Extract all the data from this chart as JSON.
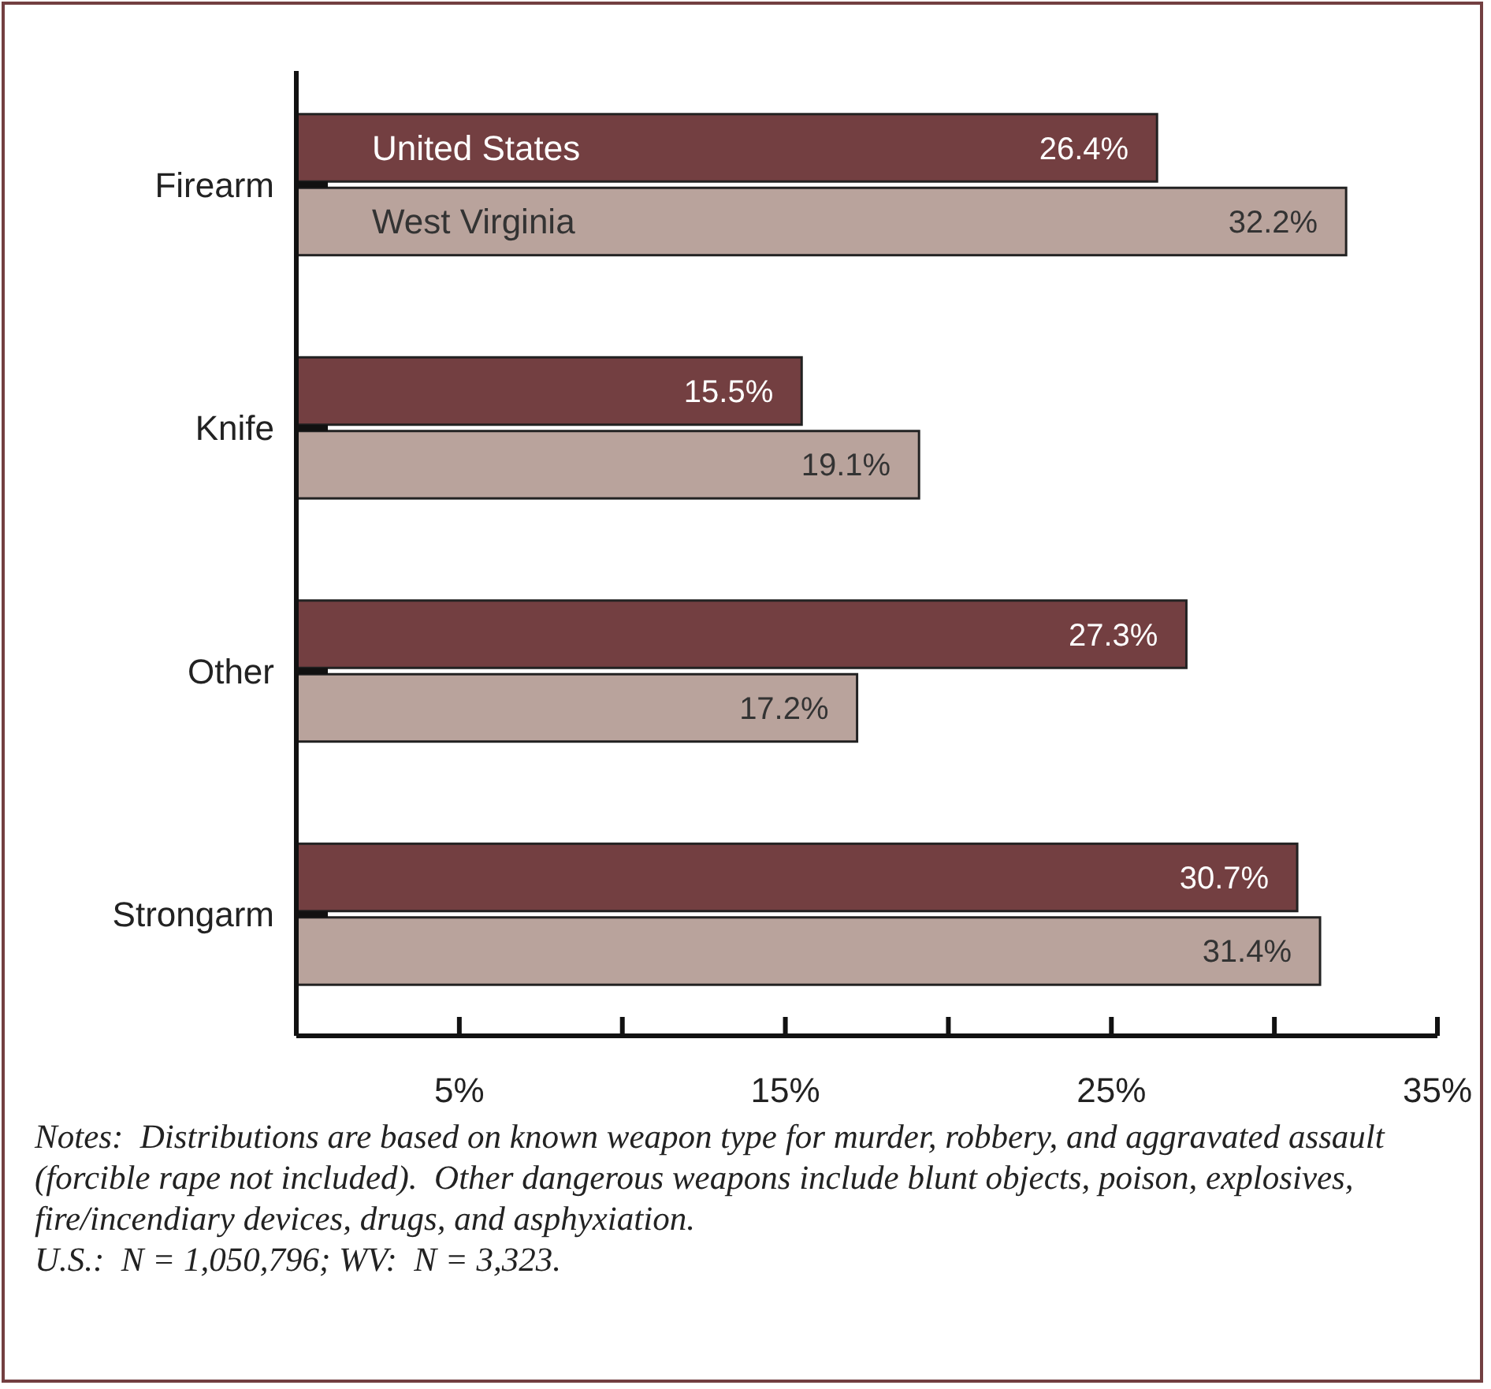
{
  "chart_data": {
    "type": "bar",
    "orientation": "horizontal",
    "categories": [
      "Firearm",
      "Knife",
      "Other",
      "Strongarm"
    ],
    "series": [
      {
        "name": "United States",
        "color": "#733f41",
        "values": [
          26.4,
          15.5,
          27.3,
          30.7
        ],
        "value_labels": [
          "26.4%",
          "15.5%",
          "27.3%",
          "30.7%"
        ]
      },
      {
        "name": "West Virginia",
        "color": "#b9a39c",
        "values": [
          32.2,
          19.1,
          17.2,
          31.4
        ],
        "value_labels": [
          "32.2%",
          "19.1%",
          "17.2%",
          "31.4%"
        ]
      }
    ],
    "xlim": [
      0,
      35
    ],
    "xticks": [
      {
        "value": 0,
        "label": null
      },
      {
        "value": 5,
        "label": "5%"
      },
      {
        "value": 10,
        "label": null
      },
      {
        "value": 15,
        "label": "15%"
      },
      {
        "value": 20,
        "label": null
      },
      {
        "value": 25,
        "label": "25%"
      },
      {
        "value": 30,
        "label": null
      },
      {
        "value": 35,
        "label": "35%"
      }
    ],
    "grid": false,
    "annotations": [
      "Notes:  Distributions are based on known weapon type for murder, robbery, and aggravated assault (forcible rape not included).  Other dangerous weapons include blunt objects, poison, explosives, fire/incendiary devices, drugs, and asphyxiation.",
      "U.S.:  N = 1,050,796; WV:  N = 3,323."
    ]
  }
}
